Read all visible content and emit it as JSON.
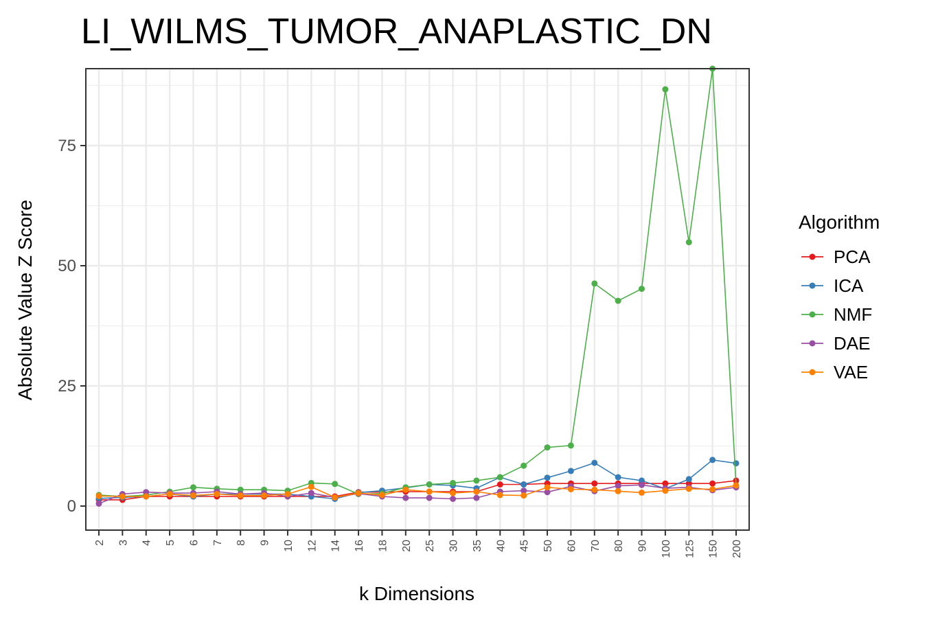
{
  "chart_data": {
    "type": "line",
    "title": "LI_WILMS_TUMOR_ANAPLASTIC_DN",
    "xlabel": "k Dimensions",
    "ylabel": "Absolute Value Z Score",
    "x": [
      "2",
      "3",
      "4",
      "5",
      "6",
      "7",
      "8",
      "9",
      "10",
      "12",
      "14",
      "16",
      "18",
      "20",
      "25",
      "30",
      "35",
      "40",
      "45",
      "50",
      "60",
      "70",
      "80",
      "90",
      "100",
      "125",
      "150",
      "200"
    ],
    "ylim": [
      -5,
      91
    ],
    "yticks": [
      0,
      25,
      50,
      75
    ],
    "grid": true,
    "legend": {
      "title": "Algorithm",
      "position": "right"
    },
    "series": [
      {
        "name": "PCA",
        "color": "#E41A1C",
        "values": [
          1.3,
          1.3,
          2.0,
          2.0,
          2.0,
          2.0,
          2.0,
          2.0,
          2.0,
          2.0,
          2.0,
          2.9,
          2.9,
          3.0,
          3.0,
          3.0,
          3.0,
          4.5,
          4.5,
          4.7,
          4.7,
          4.7,
          4.7,
          4.7,
          4.7,
          4.7,
          4.7,
          5.3
        ]
      },
      {
        "name": "ICA",
        "color": "#377EB8",
        "values": [
          1.6,
          1.8,
          2.0,
          2.5,
          2.0,
          2.5,
          2.5,
          2.5,
          2.5,
          2.0,
          1.5,
          2.8,
          3.2,
          3.8,
          4.5,
          4.3,
          3.7,
          6.0,
          4.5,
          5.9,
          7.3,
          9.0,
          6.0,
          5.3,
          3.6,
          5.6,
          9.6,
          8.9
        ]
      },
      {
        "name": "NMF",
        "color": "#4DAF4A",
        "values": [
          2.3,
          2.0,
          2.3,
          3.0,
          3.9,
          3.6,
          3.4,
          3.4,
          3.2,
          4.8,
          4.6,
          2.5,
          2.6,
          3.9,
          4.5,
          4.8,
          5.3,
          6.0,
          8.4,
          12.2,
          12.6,
          46.3,
          42.7,
          45.2,
          86.7,
          54.9,
          91.0,
          4.3
        ]
      },
      {
        "name": "DAE",
        "color": "#984EA3",
        "values": [
          0.5,
          2.5,
          2.9,
          2.7,
          2.7,
          3.0,
          2.5,
          2.7,
          2.0,
          2.7,
          1.8,
          2.6,
          2.0,
          1.7,
          1.7,
          1.5,
          1.7,
          3.0,
          3.2,
          2.9,
          4.1,
          3.1,
          4.2,
          4.4,
          3.7,
          3.9,
          3.3,
          3.9
        ]
      },
      {
        "name": "VAE",
        "color": "#FF7F00",
        "values": [
          2.1,
          2.0,
          2.0,
          2.5,
          2.2,
          2.5,
          2.2,
          2.2,
          2.5,
          4.0,
          1.8,
          2.7,
          2.3,
          3.4,
          3.0,
          2.7,
          3.0,
          2.3,
          2.2,
          3.9,
          3.5,
          3.4,
          3.1,
          2.8,
          3.2,
          3.6,
          3.5,
          4.3
        ]
      }
    ]
  }
}
